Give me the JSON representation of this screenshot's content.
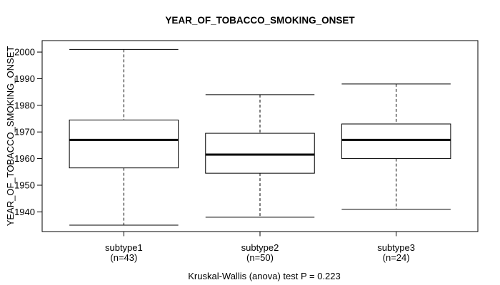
{
  "title": "YEAR_OF_TOBACCO_SMOKING_ONSET",
  "y_axis_label": "YEAR_OF_TOBACCO_SMOKING_ONSET",
  "caption": "Kruskal-Wallis (anova) test P = 0.223",
  "chart_data": {
    "type": "boxplot",
    "title": "YEAR_OF_TOBACCO_SMOKING_ONSET",
    "xlabel": "",
    "ylabel": "YEAR_OF_TOBACCO_SMOKING_ONSET",
    "ylim": [
      1932.6,
      2004.3
    ],
    "yticks": [
      1940,
      1950,
      1960,
      1970,
      1980,
      1990,
      2000
    ],
    "grid": false,
    "legend": "none",
    "categories": [
      "subtype1",
      "subtype2",
      "subtype3"
    ],
    "category_sublabels": [
      "(n=43)",
      "(n=50)",
      "(n=24)"
    ],
    "series": [
      {
        "name": "subtype1",
        "n": 43,
        "whisker_low": 1935,
        "q1": 1956.5,
        "median": 1967,
        "q3": 1974.5,
        "whisker_high": 2001
      },
      {
        "name": "subtype2",
        "n": 50,
        "whisker_low": 1938,
        "q1": 1954.5,
        "median": 1961.5,
        "q3": 1969.5,
        "whisker_high": 1984
      },
      {
        "name": "subtype3",
        "n": 24,
        "whisker_low": 1941,
        "q1": 1960,
        "median": 1967,
        "q3": 1973,
        "whisker_high": 1988
      }
    ],
    "annotation": "Kruskal-Wallis (anova) test P = 0.223",
    "colors": {
      "line": "#000000",
      "box_fill": "#ffffff",
      "background": "#ffffff"
    }
  }
}
